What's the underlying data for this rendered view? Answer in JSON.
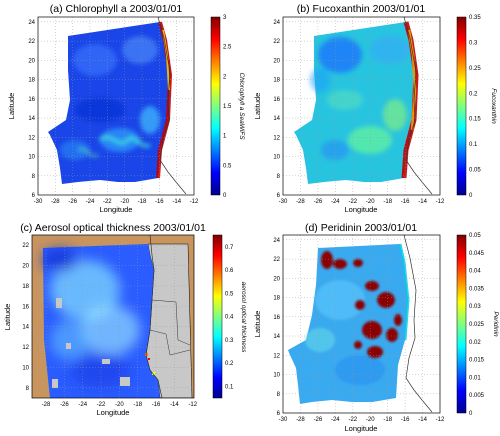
{
  "figure": {
    "panels": [
      {
        "id": "a",
        "title": "(a) Chlorophyll a 2003/01/01",
        "xlabel": "Longitude",
        "ylabel": "Latitude",
        "colorbar_label": "Chlorophyll a SeaWiFS",
        "xticks": [
          "-30",
          "-28",
          "-26",
          "-24",
          "-22",
          "-20",
          "-18",
          "-16",
          "-14",
          "-12"
        ],
        "yticks": [
          "6",
          "8",
          "10",
          "12",
          "14",
          "16",
          "18",
          "20",
          "22",
          "24"
        ],
        "cticks": [
          "0",
          "0.5",
          "1",
          "1.5",
          "2",
          "2.5",
          "3"
        ],
        "cmin": 0,
        "cmax": 3,
        "lon_range": [
          -30,
          -12
        ],
        "lat_range": [
          6,
          24.5
        ],
        "background": "white"
      },
      {
        "id": "b",
        "title": "(b) Fucoxanthin 2003/01/01",
        "xlabel": "Longitude",
        "ylabel": "Latitude",
        "colorbar_label": "Fucoxanthin",
        "xticks": [
          "-30",
          "-28",
          "-26",
          "-24",
          "-22",
          "-20",
          "-18",
          "-16",
          "-14",
          "-12"
        ],
        "yticks": [
          "6",
          "8",
          "10",
          "12",
          "14",
          "16",
          "18",
          "20",
          "22",
          "24"
        ],
        "cticks": [
          "0",
          "0.05",
          "0.1",
          "0.15",
          "0.2",
          "0.25",
          "0.3",
          "0.35"
        ],
        "cmin": 0,
        "cmax": 0.35,
        "lon_range": [
          -30,
          -12
        ],
        "lat_range": [
          6,
          24.5
        ],
        "background": "white"
      },
      {
        "id": "c",
        "title": "(c) Aerosol optical thickness 2003/01/01",
        "xlabel": "Longitude",
        "ylabel": "Latitude",
        "colorbar_label": "aerosol optical thickness",
        "xticks": [
          "-28",
          "-26",
          "-24",
          "-22",
          "-20",
          "-18",
          "-16",
          "-14",
          "-12"
        ],
        "yticks": [
          "8",
          "10",
          "12",
          "14",
          "16",
          "18",
          "20",
          "22"
        ],
        "cticks": [
          "0.1",
          "0.2",
          "0.3",
          "0.4",
          "0.5",
          "0.6",
          "0.7"
        ],
        "cmin": 0.05,
        "cmax": 0.75,
        "lon_range": [
          -29.5,
          -11.5
        ],
        "lat_range": [
          7.5,
          23.5
        ],
        "background": "tan"
      },
      {
        "id": "d",
        "title": "(d) Peridinin 2003/01/01",
        "xlabel": "Longitude",
        "ylabel": "Latitude",
        "colorbar_label": "Peridinin",
        "xticks": [
          "-30",
          "-28",
          "-26",
          "-24",
          "-22",
          "-20",
          "-18",
          "-16",
          "-14",
          "-12"
        ],
        "yticks": [
          "6",
          "8",
          "10",
          "12",
          "14",
          "16",
          "18",
          "20",
          "22",
          "24"
        ],
        "cticks": [
          "0",
          "0.005",
          "0.01",
          "0.015",
          "0.02",
          "0.025",
          "0.03",
          "0.035",
          "0.04",
          "0.045",
          "0.05"
        ],
        "cmin": 0,
        "cmax": 0.05,
        "lon_range": [
          -30,
          -12
        ],
        "lat_range": [
          6,
          24.5
        ],
        "background": "white"
      }
    ],
    "colors": {
      "land_grey": "#c8c8c8",
      "tan_background": "#c8955f",
      "coastline": "#333333"
    }
  }
}
